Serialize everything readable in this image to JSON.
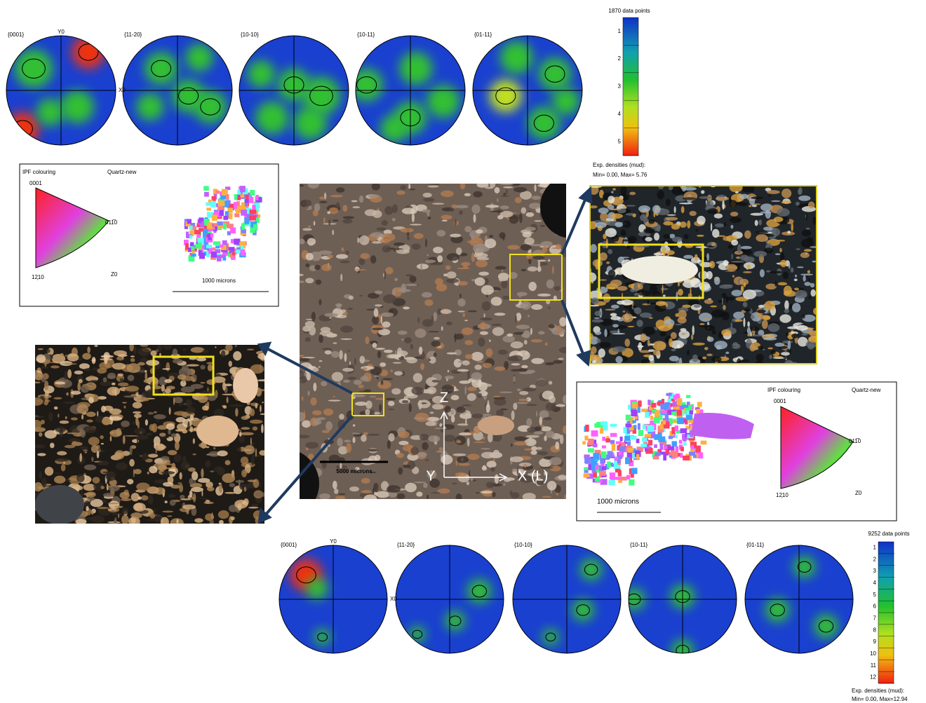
{
  "top_pole_figures": {
    "labels": [
      "{0001}",
      "{11-20}",
      "{10-10}",
      "{10-11}",
      "{01-11}"
    ],
    "y_label": "Y0",
    "x_label": "X0"
  },
  "top_colorbar": {
    "title": "1870 data points",
    "ticks": [
      1,
      2,
      3,
      4,
      5
    ],
    "caption": [
      "Exp. densities (mud):",
      "Min= 0.00, Max= 5.76"
    ]
  },
  "ipf_left": {
    "title": "IPF colouring",
    "phase": "Quartz-new",
    "corner_top": "0001",
    "corner_right": "011̅0",
    "corner_bottom": "12͕10",
    "axis": "Z0",
    "scale": "1000 microns"
  },
  "center_photo": {
    "scale": "5000 microns",
    "z_axis": "Z",
    "y_axis": "Y",
    "x_axis": "X (L)"
  },
  "ipf_right": {
    "title": "IPF colouring",
    "phase": "Quartz-new",
    "corner_top": "0001",
    "corner_right": "011̅0",
    "corner_bottom": "12͕10",
    "axis": "Z0",
    "scale": "1000 microns"
  },
  "bottom_pole_figures": {
    "labels": [
      "{0001}",
      "{11-20}",
      "{10-10}",
      "{10-11}",
      "{01-11}"
    ],
    "y_label": "Y0",
    "x_label": "X0"
  },
  "bottom_colorbar": {
    "title": "9252 data points",
    "ticks": [
      1,
      2,
      3,
      4,
      5,
      6,
      7,
      8,
      9,
      10,
      11,
      12
    ],
    "caption": [
      "Exp. densities (mud):",
      "Min= 0.00, Max=12.94"
    ]
  }
}
